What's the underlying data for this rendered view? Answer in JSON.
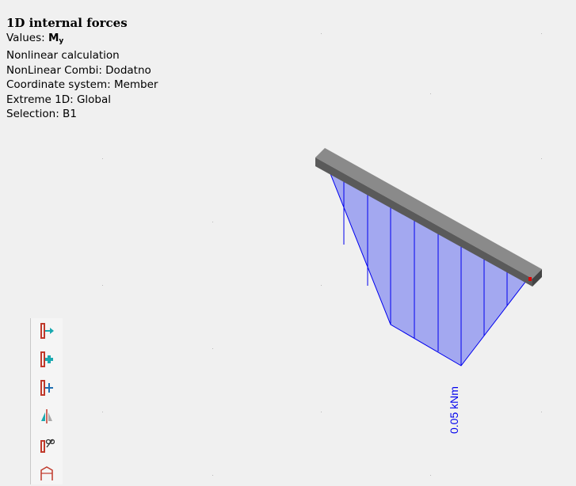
{
  "info": {
    "title": "1D internal forces",
    "values_label": "Values: ",
    "values_quantity": "M",
    "values_subscript": "y",
    "calculation": "Nonlinear calculation",
    "combination": "NonLinear Combi: Dodatno",
    "coordinate_system": "Coordinate system: Member",
    "extreme": "Extreme 1D: Global",
    "selection": "Selection: B1"
  },
  "diagram": {
    "max_label": "0.05 kNm",
    "fill_color": "#a3a8f0",
    "line_color": "#0000ee",
    "beam_color": "#6e6e6e"
  },
  "toolbar": {
    "tools": [
      {
        "name": "insert-node-tool-icon"
      },
      {
        "name": "add-member-tool-icon"
      },
      {
        "name": "connect-members-tool-icon"
      },
      {
        "name": "mirror-tool-icon"
      },
      {
        "name": "split-member-tool-icon"
      },
      {
        "name": "frame-tool-icon"
      }
    ]
  }
}
